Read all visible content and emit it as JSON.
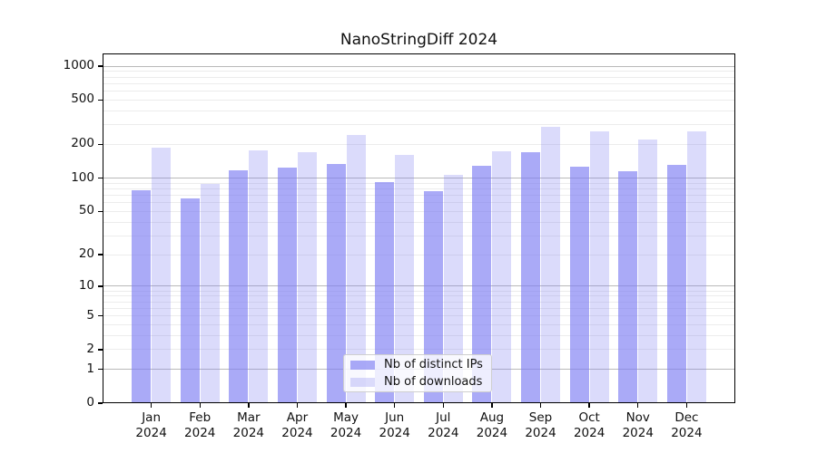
{
  "chart_data": {
    "type": "bar",
    "title": "NanoStringDiff 2024",
    "categories": [
      [
        "Jan",
        "2024"
      ],
      [
        "Feb",
        "2024"
      ],
      [
        "Mar",
        "2024"
      ],
      [
        "Apr",
        "2024"
      ],
      [
        "May",
        "2024"
      ],
      [
        "Jun",
        "2024"
      ],
      [
        "Jul",
        "2024"
      ],
      [
        "Aug",
        "2024"
      ],
      [
        "Sep",
        "2024"
      ],
      [
        "Oct",
        "2024"
      ],
      [
        "Nov",
        "2024"
      ],
      [
        "Dec",
        "2024"
      ]
    ],
    "series": [
      {
        "name": "Nb of distinct IPs",
        "values": [
          78,
          65,
          117,
          124,
          134,
          92,
          76,
          129,
          171,
          127,
          116,
          131
        ],
        "alpha": 0.65
      },
      {
        "name": "Nb of downloads",
        "values": [
          187,
          88,
          177,
          170,
          242,
          162,
          107,
          173,
          287,
          262,
          221,
          262
        ],
        "alpha": 0.28
      }
    ],
    "bar_color": "#7d7df2",
    "yticks": [
      0,
      1,
      2,
      5,
      10,
      20,
      50,
      100,
      200,
      500,
      1000
    ],
    "ylim": [
      0,
      1000
    ],
    "yscale": "log1p",
    "grid": true,
    "grid_major_color": "#b9b9b9",
    "grid_minor_color": "#ececec",
    "legend_position": "lower-center"
  }
}
